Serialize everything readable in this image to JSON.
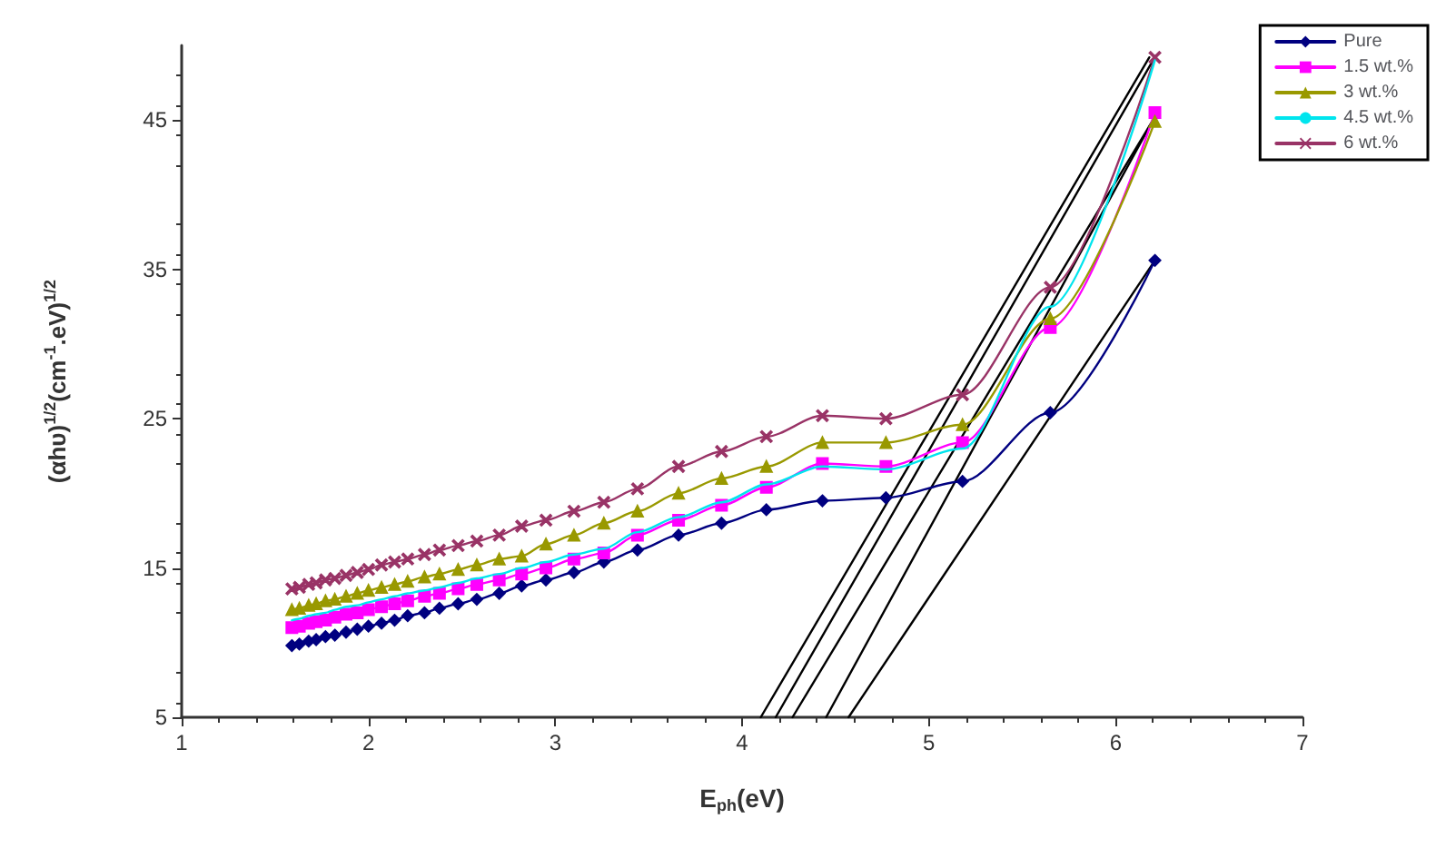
{
  "chart_data": {
    "type": "line",
    "xlabel": "E$_{ph}$(eV)",
    "ylabel": "(αhυ)$^{1/2}$(cm$^{-1}$.eV)$^{1/2}$",
    "x": [
      1.59,
      1.63,
      1.68,
      1.72,
      1.77,
      1.82,
      1.88,
      1.94,
      2.0,
      2.07,
      2.14,
      2.21,
      2.3,
      2.38,
      2.48,
      2.58,
      2.7,
      2.82,
      2.95,
      3.1,
      3.26,
      3.44,
      3.66,
      3.89,
      4.13,
      4.43,
      4.77,
      5.18,
      5.65,
      6.21
    ],
    "series": [
      {
        "name": "Pure",
        "color": "#000080",
        "marker": "diamond",
        "values": [
          9.8,
          9.9,
          10.1,
          10.2,
          10.4,
          10.5,
          10.7,
          10.9,
          11.1,
          11.3,
          11.5,
          11.8,
          12.0,
          12.3,
          12.6,
          12.9,
          13.3,
          13.8,
          14.2,
          14.7,
          15.4,
          16.2,
          17.2,
          18.0,
          18.9,
          19.5,
          19.7,
          20.8,
          25.4,
          35.6
        ]
      },
      {
        "name": "1.5 wt.%",
        "color": "#ff00ff",
        "marker": "square",
        "values": [
          11.0,
          11.1,
          11.3,
          11.4,
          11.5,
          11.7,
          11.9,
          12.0,
          12.2,
          12.4,
          12.6,
          12.8,
          13.1,
          13.3,
          13.6,
          13.9,
          14.2,
          14.6,
          15.0,
          15.6,
          16.0,
          17.2,
          18.2,
          19.2,
          20.4,
          22.0,
          21.8,
          23.4,
          31.1,
          45.5
        ]
      },
      {
        "name": "3 wt.%",
        "color": "#999900",
        "marker": "triangle",
        "values": [
          12.2,
          12.3,
          12.5,
          12.6,
          12.8,
          12.9,
          13.1,
          13.3,
          13.5,
          13.7,
          13.9,
          14.1,
          14.4,
          14.6,
          14.9,
          15.2,
          15.6,
          15.8,
          16.6,
          17.2,
          18.0,
          18.8,
          20.0,
          21.0,
          21.8,
          23.4,
          23.4,
          24.6,
          31.7,
          44.9
        ]
      },
      {
        "name": "4.5 wt.%",
        "color": "#00e5ee",
        "marker": "none",
        "values": [
          11.5,
          11.6,
          11.8,
          11.9,
          12.0,
          12.2,
          12.4,
          12.5,
          12.7,
          12.9,
          13.1,
          13.3,
          13.5,
          13.7,
          14.0,
          14.3,
          14.6,
          15.0,
          15.4,
          15.9,
          16.3,
          17.4,
          18.4,
          19.4,
          20.6,
          21.8,
          21.6,
          23.0,
          32.5,
          49.0
        ]
      },
      {
        "name": "6 wt.%",
        "color": "#993366",
        "marker": "cross",
        "values": [
          13.6,
          13.7,
          13.9,
          14.0,
          14.2,
          14.3,
          14.5,
          14.7,
          14.9,
          15.2,
          15.4,
          15.6,
          15.9,
          16.2,
          16.5,
          16.8,
          17.2,
          17.8,
          18.2,
          18.8,
          19.4,
          20.3,
          21.8,
          22.8,
          23.8,
          25.2,
          25.0,
          26.6,
          33.8,
          49.2
        ]
      },
      {
        "type": "line",
        "color": "#000000",
        "marker": "none",
        "x": [
          4.1,
          6.18
        ],
        "values": [
          5,
          49.2
        ]
      },
      {
        "type": "line",
        "color": "#000000",
        "marker": "none",
        "x": [
          4.18,
          6.2
        ],
        "values": [
          5,
          49.0
        ]
      },
      {
        "type": "line",
        "color": "#000000",
        "marker": "none",
        "x": [
          4.27,
          6.2
        ],
        "values": [
          5,
          45.0
        ]
      },
      {
        "type": "line",
        "color": "#000000",
        "marker": "none",
        "x": [
          4.45,
          6.2
        ],
        "values": [
          5,
          45.0
        ]
      },
      {
        "type": "line",
        "color": "#000000",
        "marker": "none",
        "x": [
          4.57,
          6.21
        ],
        "values": [
          5,
          35.6
        ]
      }
    ],
    "xlim": [
      1,
      7
    ],
    "xticks": [
      1,
      2,
      3,
      4,
      5,
      6,
      7
    ],
    "ylim": [
      5,
      50
    ],
    "yticks": [
      5,
      15,
      25,
      35,
      45
    ],
    "grid": false,
    "legend": "top right"
  }
}
